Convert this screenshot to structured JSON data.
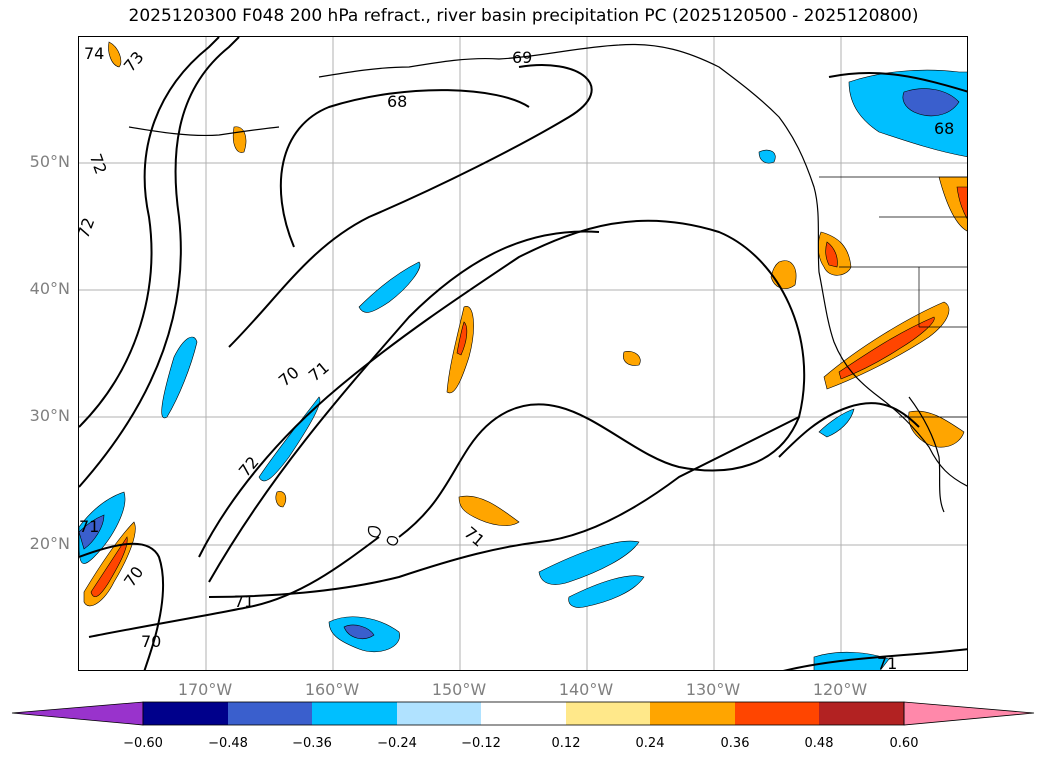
{
  "title": "2025120300 F048 200 hPa refract., river basin precipitation PC (2025120500 - 2025120800)",
  "lat_labels": [
    "50°N",
    "40°N",
    "30°N",
    "20°N"
  ],
  "lon_labels": [
    "170°W",
    "160°W",
    "150°W",
    "140°W",
    "130°W",
    "120°W"
  ],
  "contour_labels": [
    "74",
    "73",
    "72",
    "72",
    "69",
    "68",
    "68",
    "70",
    "71",
    "72",
    "71",
    "70",
    "71",
    "70",
    "71",
    "71"
  ],
  "colorbar": {
    "ticks": [
      "−0.60",
      "−0.48",
      "−0.36",
      "−0.24",
      "−0.12",
      "0.12",
      "0.24",
      "0.36",
      "0.48",
      "0.60"
    ],
    "colors": [
      "#9933cc",
      "#00008b",
      "#3a5fcd",
      "#00bfff",
      "#b0e2ff",
      "#ffffff",
      "#ffe88a",
      "#ffa500",
      "#ff4500",
      "#b22222",
      "#ff88aa"
    ]
  }
}
